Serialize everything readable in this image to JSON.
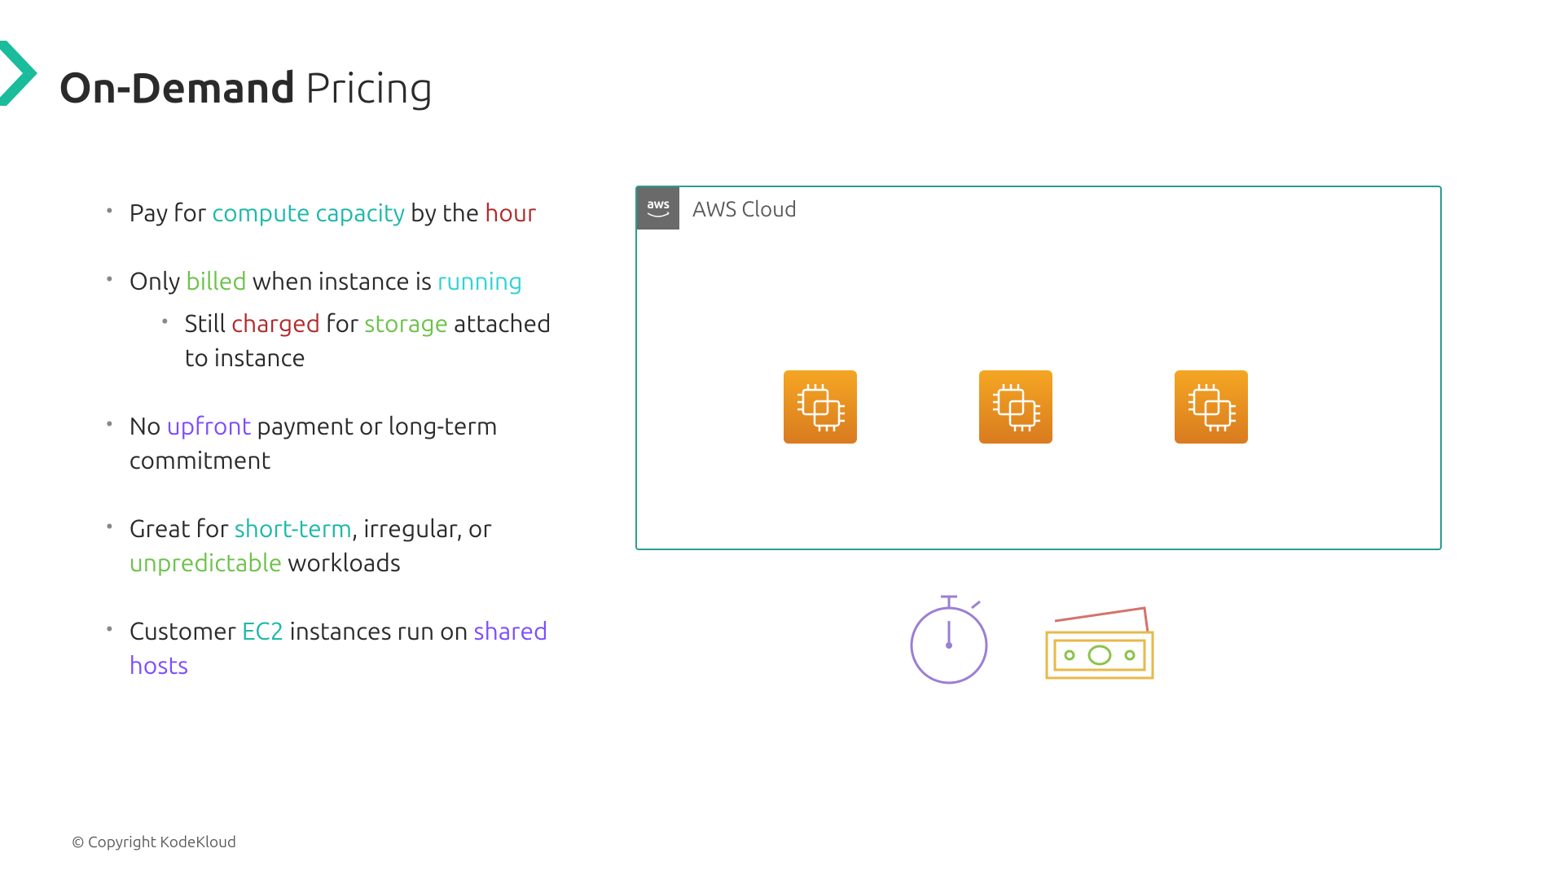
{
  "title": {
    "bold": "On-Demand",
    "regular": " Pricing"
  },
  "bullets": [
    {
      "parts": [
        {
          "t": "Pay for ",
          "c": ""
        },
        {
          "t": "compute capacity",
          "c": "hl-teal"
        },
        {
          "t": " by the ",
          "c": ""
        },
        {
          "t": "hour",
          "c": "hl-red"
        }
      ]
    },
    {
      "parts": [
        {
          "t": "Only ",
          "c": ""
        },
        {
          "t": "billed",
          "c": "hl-green"
        },
        {
          "t": " when instance is ",
          "c": ""
        },
        {
          "t": "running",
          "c": "hl-cyan"
        }
      ],
      "sub": {
        "parts": [
          {
            "t": "Still ",
            "c": ""
          },
          {
            "t": "charged",
            "c": "hl-red"
          },
          {
            "t": " for ",
            "c": ""
          },
          {
            "t": "storage",
            "c": "hl-green"
          },
          {
            "t": " attached to instance",
            "c": ""
          }
        ]
      }
    },
    {
      "parts": [
        {
          "t": "No ",
          "c": ""
        },
        {
          "t": "upfront",
          "c": "hl-purple"
        },
        {
          "t": " payment or long-term commitment",
          "c": ""
        }
      ]
    },
    {
      "parts": [
        {
          "t": "Great for ",
          "c": ""
        },
        {
          "t": "short-term",
          "c": "hl-teal"
        },
        {
          "t": ", irregular, or ",
          "c": ""
        },
        {
          "t": "unpredictable",
          "c": "hl-green"
        },
        {
          "t": " workloads",
          "c": ""
        }
      ]
    },
    {
      "parts": [
        {
          "t": "Customer ",
          "c": ""
        },
        {
          "t": "EC2",
          "c": "hl-teal"
        },
        {
          "t": " instances run on ",
          "c": ""
        },
        {
          "t": "shared hosts",
          "c": "hl-purple"
        }
      ]
    }
  ],
  "cloud": {
    "label": "AWS Cloud",
    "aws_text": "aws",
    "instance_count": 3
  },
  "colors": {
    "ec2_gradient_top": "#f5a623",
    "ec2_gradient_bottom": "#d97b1f",
    "cloud_border": "#2a9d8f",
    "chevron": "#1abc9c",
    "stopwatch": "#9b7fd4",
    "money_green": "#8bc34a",
    "money_red": "#d4736a",
    "money_yellow": "#e8b84a"
  },
  "copyright": "© Copyright KodeKloud"
}
